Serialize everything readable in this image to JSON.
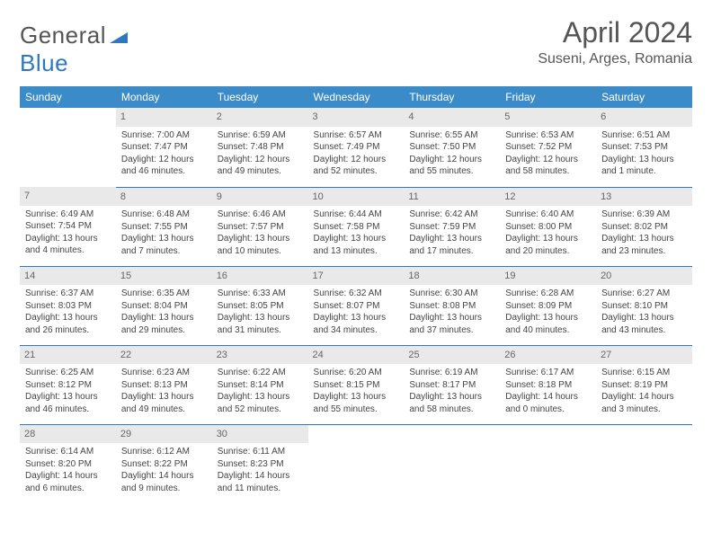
{
  "brand": {
    "part1": "General",
    "part2": "Blue"
  },
  "title": {
    "month": "April 2024",
    "location": "Suseni, Arges, Romania"
  },
  "colors": {
    "header_bg": "#3b8bc9",
    "header_text": "#ffffff",
    "daynum_bg": "#e9e9e9",
    "daynum_text": "#666666",
    "border": "#2f78bd",
    "body_text": "#444444",
    "title_text": "#555555",
    "brand_blue": "#2f78bd"
  },
  "weekdays": [
    "Sunday",
    "Monday",
    "Tuesday",
    "Wednesday",
    "Thursday",
    "Friday",
    "Saturday"
  ],
  "weeks": [
    [
      {
        "day": "",
        "sunrise": "",
        "sunset": "",
        "daylight1": "",
        "daylight2": ""
      },
      {
        "day": "1",
        "sunrise": "Sunrise: 7:00 AM",
        "sunset": "Sunset: 7:47 PM",
        "daylight1": "Daylight: 12 hours",
        "daylight2": "and 46 minutes."
      },
      {
        "day": "2",
        "sunrise": "Sunrise: 6:59 AM",
        "sunset": "Sunset: 7:48 PM",
        "daylight1": "Daylight: 12 hours",
        "daylight2": "and 49 minutes."
      },
      {
        "day": "3",
        "sunrise": "Sunrise: 6:57 AM",
        "sunset": "Sunset: 7:49 PM",
        "daylight1": "Daylight: 12 hours",
        "daylight2": "and 52 minutes."
      },
      {
        "day": "4",
        "sunrise": "Sunrise: 6:55 AM",
        "sunset": "Sunset: 7:50 PM",
        "daylight1": "Daylight: 12 hours",
        "daylight2": "and 55 minutes."
      },
      {
        "day": "5",
        "sunrise": "Sunrise: 6:53 AM",
        "sunset": "Sunset: 7:52 PM",
        "daylight1": "Daylight: 12 hours",
        "daylight2": "and 58 minutes."
      },
      {
        "day": "6",
        "sunrise": "Sunrise: 6:51 AM",
        "sunset": "Sunset: 7:53 PM",
        "daylight1": "Daylight: 13 hours",
        "daylight2": "and 1 minute."
      }
    ],
    [
      {
        "day": "7",
        "sunrise": "Sunrise: 6:49 AM",
        "sunset": "Sunset: 7:54 PM",
        "daylight1": "Daylight: 13 hours",
        "daylight2": "and 4 minutes."
      },
      {
        "day": "8",
        "sunrise": "Sunrise: 6:48 AM",
        "sunset": "Sunset: 7:55 PM",
        "daylight1": "Daylight: 13 hours",
        "daylight2": "and 7 minutes."
      },
      {
        "day": "9",
        "sunrise": "Sunrise: 6:46 AM",
        "sunset": "Sunset: 7:57 PM",
        "daylight1": "Daylight: 13 hours",
        "daylight2": "and 10 minutes."
      },
      {
        "day": "10",
        "sunrise": "Sunrise: 6:44 AM",
        "sunset": "Sunset: 7:58 PM",
        "daylight1": "Daylight: 13 hours",
        "daylight2": "and 13 minutes."
      },
      {
        "day": "11",
        "sunrise": "Sunrise: 6:42 AM",
        "sunset": "Sunset: 7:59 PM",
        "daylight1": "Daylight: 13 hours",
        "daylight2": "and 17 minutes."
      },
      {
        "day": "12",
        "sunrise": "Sunrise: 6:40 AM",
        "sunset": "Sunset: 8:00 PM",
        "daylight1": "Daylight: 13 hours",
        "daylight2": "and 20 minutes."
      },
      {
        "day": "13",
        "sunrise": "Sunrise: 6:39 AM",
        "sunset": "Sunset: 8:02 PM",
        "daylight1": "Daylight: 13 hours",
        "daylight2": "and 23 minutes."
      }
    ],
    [
      {
        "day": "14",
        "sunrise": "Sunrise: 6:37 AM",
        "sunset": "Sunset: 8:03 PM",
        "daylight1": "Daylight: 13 hours",
        "daylight2": "and 26 minutes."
      },
      {
        "day": "15",
        "sunrise": "Sunrise: 6:35 AM",
        "sunset": "Sunset: 8:04 PM",
        "daylight1": "Daylight: 13 hours",
        "daylight2": "and 29 minutes."
      },
      {
        "day": "16",
        "sunrise": "Sunrise: 6:33 AM",
        "sunset": "Sunset: 8:05 PM",
        "daylight1": "Daylight: 13 hours",
        "daylight2": "and 31 minutes."
      },
      {
        "day": "17",
        "sunrise": "Sunrise: 6:32 AM",
        "sunset": "Sunset: 8:07 PM",
        "daylight1": "Daylight: 13 hours",
        "daylight2": "and 34 minutes."
      },
      {
        "day": "18",
        "sunrise": "Sunrise: 6:30 AM",
        "sunset": "Sunset: 8:08 PM",
        "daylight1": "Daylight: 13 hours",
        "daylight2": "and 37 minutes."
      },
      {
        "day": "19",
        "sunrise": "Sunrise: 6:28 AM",
        "sunset": "Sunset: 8:09 PM",
        "daylight1": "Daylight: 13 hours",
        "daylight2": "and 40 minutes."
      },
      {
        "day": "20",
        "sunrise": "Sunrise: 6:27 AM",
        "sunset": "Sunset: 8:10 PM",
        "daylight1": "Daylight: 13 hours",
        "daylight2": "and 43 minutes."
      }
    ],
    [
      {
        "day": "21",
        "sunrise": "Sunrise: 6:25 AM",
        "sunset": "Sunset: 8:12 PM",
        "daylight1": "Daylight: 13 hours",
        "daylight2": "and 46 minutes."
      },
      {
        "day": "22",
        "sunrise": "Sunrise: 6:23 AM",
        "sunset": "Sunset: 8:13 PM",
        "daylight1": "Daylight: 13 hours",
        "daylight2": "and 49 minutes."
      },
      {
        "day": "23",
        "sunrise": "Sunrise: 6:22 AM",
        "sunset": "Sunset: 8:14 PM",
        "daylight1": "Daylight: 13 hours",
        "daylight2": "and 52 minutes."
      },
      {
        "day": "24",
        "sunrise": "Sunrise: 6:20 AM",
        "sunset": "Sunset: 8:15 PM",
        "daylight1": "Daylight: 13 hours",
        "daylight2": "and 55 minutes."
      },
      {
        "day": "25",
        "sunrise": "Sunrise: 6:19 AM",
        "sunset": "Sunset: 8:17 PM",
        "daylight1": "Daylight: 13 hours",
        "daylight2": "and 58 minutes."
      },
      {
        "day": "26",
        "sunrise": "Sunrise: 6:17 AM",
        "sunset": "Sunset: 8:18 PM",
        "daylight1": "Daylight: 14 hours",
        "daylight2": "and 0 minutes."
      },
      {
        "day": "27",
        "sunrise": "Sunrise: 6:15 AM",
        "sunset": "Sunset: 8:19 PM",
        "daylight1": "Daylight: 14 hours",
        "daylight2": "and 3 minutes."
      }
    ],
    [
      {
        "day": "28",
        "sunrise": "Sunrise: 6:14 AM",
        "sunset": "Sunset: 8:20 PM",
        "daylight1": "Daylight: 14 hours",
        "daylight2": "and 6 minutes."
      },
      {
        "day": "29",
        "sunrise": "Sunrise: 6:12 AM",
        "sunset": "Sunset: 8:22 PM",
        "daylight1": "Daylight: 14 hours",
        "daylight2": "and 9 minutes."
      },
      {
        "day": "30",
        "sunrise": "Sunrise: 6:11 AM",
        "sunset": "Sunset: 8:23 PM",
        "daylight1": "Daylight: 14 hours",
        "daylight2": "and 11 minutes."
      },
      {
        "day": "",
        "sunrise": "",
        "sunset": "",
        "daylight1": "",
        "daylight2": ""
      },
      {
        "day": "",
        "sunrise": "",
        "sunset": "",
        "daylight1": "",
        "daylight2": ""
      },
      {
        "day": "",
        "sunrise": "",
        "sunset": "",
        "daylight1": "",
        "daylight2": ""
      },
      {
        "day": "",
        "sunrise": "",
        "sunset": "",
        "daylight1": "",
        "daylight2": ""
      }
    ]
  ]
}
